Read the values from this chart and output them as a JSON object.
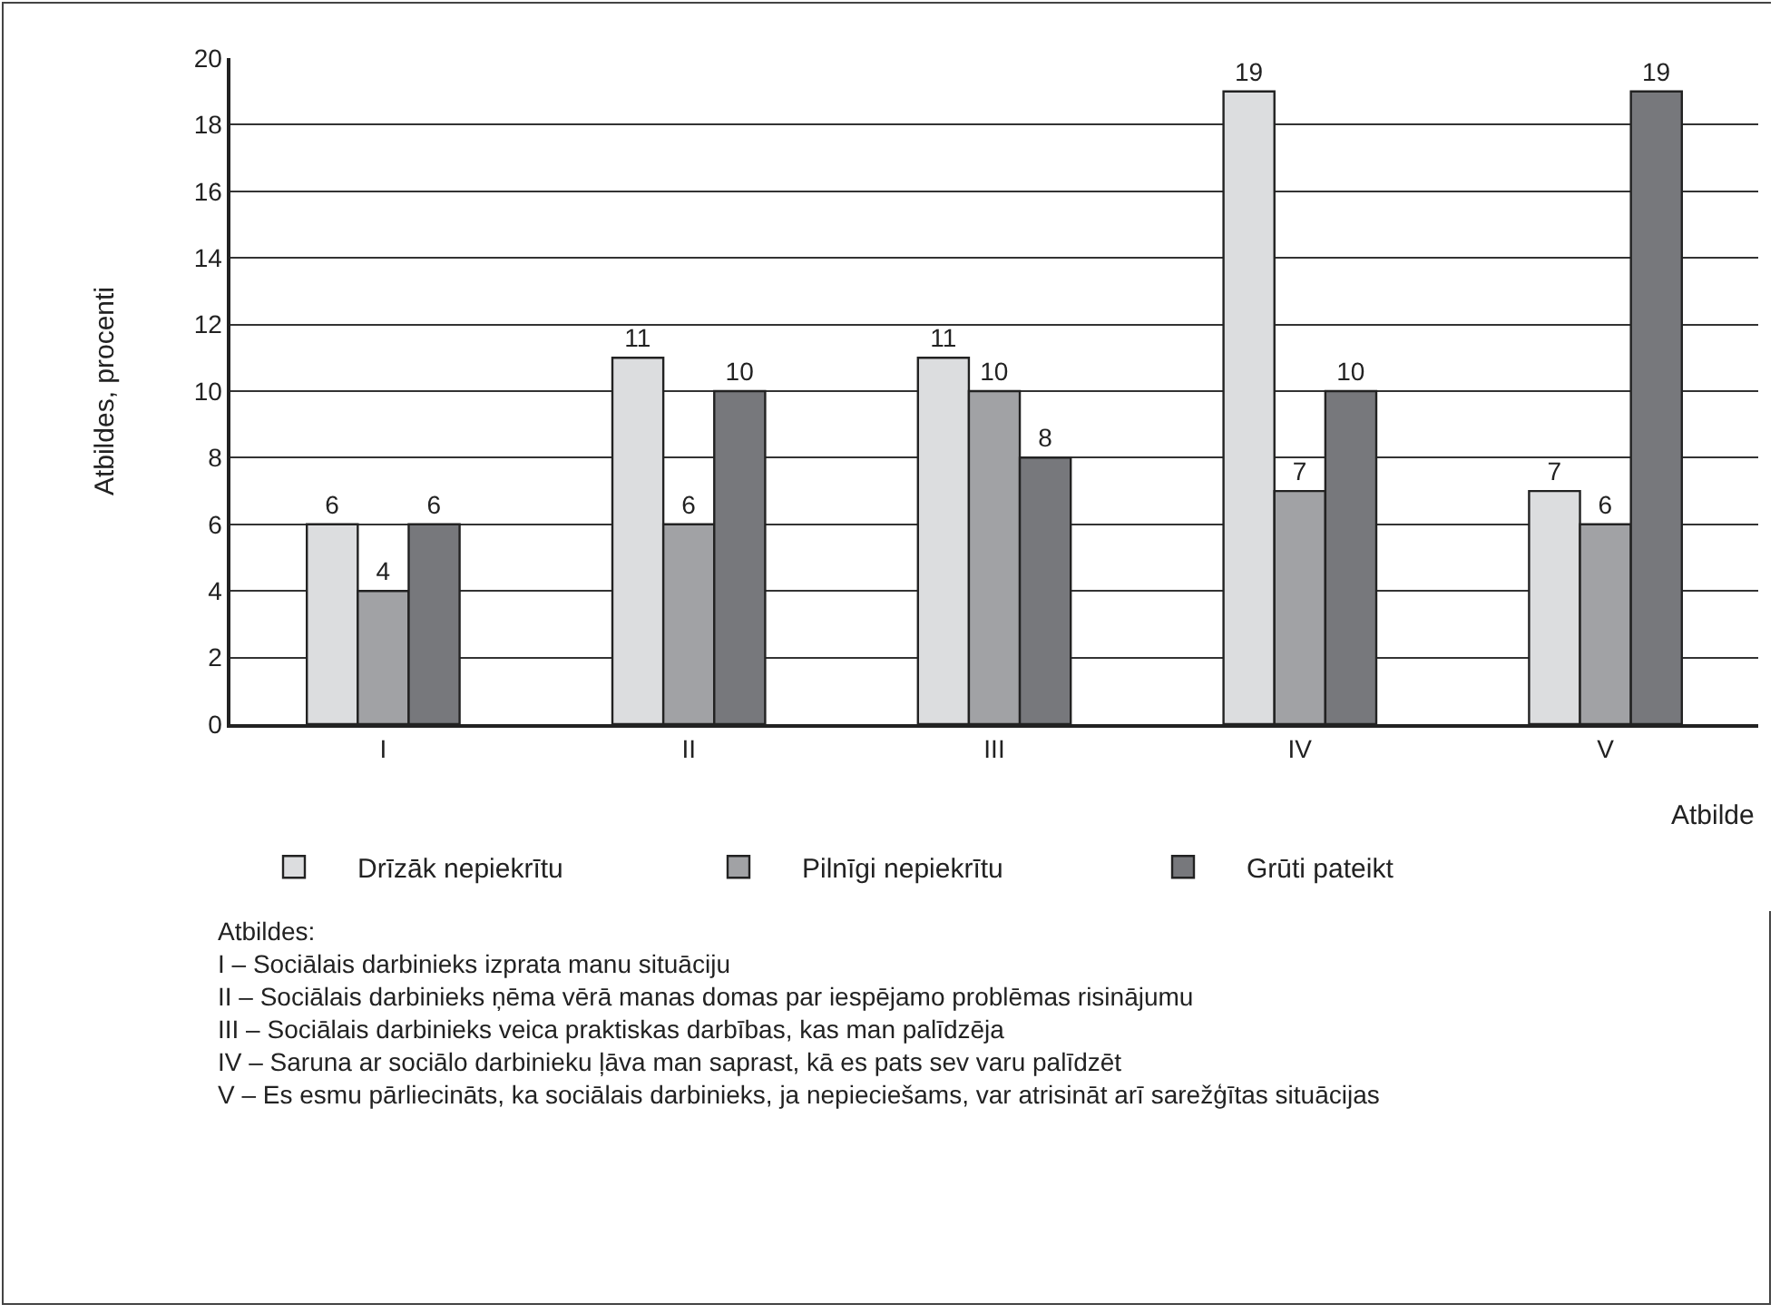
{
  "chart_data": {
    "type": "bar",
    "ylabel": "Atbildes, procenti",
    "xlabel": "Atbilde",
    "categories": [
      "I",
      "II",
      "III",
      "IV",
      "V"
    ],
    "series": [
      {
        "name": "Drīzāk nepiekrītu",
        "color": "#dcdddf",
        "values": [
          6,
          11,
          11,
          19,
          7
        ]
      },
      {
        "name": "Pilnīgi nepiekrītu",
        "color": "#a1a2a5",
        "values": [
          4,
          6,
          10,
          7,
          6
        ]
      },
      {
        "name": "Grūti pateikt",
        "color": "#77787c",
        "values": [
          6,
          10,
          8,
          10,
          19
        ]
      }
    ],
    "ylim": [
      0,
      20
    ],
    "yticks": [
      0,
      2,
      4,
      6,
      8,
      10,
      12,
      14,
      16,
      18,
      20
    ],
    "grid": "y",
    "legend": "bottom",
    "data_labels": true,
    "annotations": [
      "Atbildes:",
      "I – Sociālais darbinieks izprata manu situāciju",
      "II – Sociālais darbinieks ņēma vērā manas domas par iespējamo problēmas risinājumu",
      "III – Sociālais darbinieks veica praktiskas darbības, kas man palīdzēja",
      "IV – Saruna ar sociālo darbinieku ļāva man saprast, kā es pats sev varu palīdzēt",
      "V – Es esmu pārliecināts, ka sociālais darbinieks, ja nepieciešams, var atrisināt arī sarežģītas situācijas"
    ]
  }
}
